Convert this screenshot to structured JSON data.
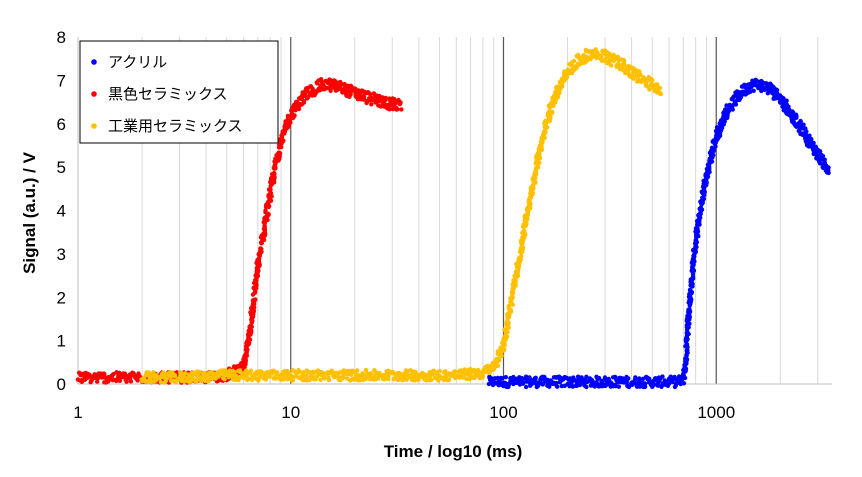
{
  "chart_data": {
    "type": "scatter",
    "x_scale": "log",
    "xlim": [
      1,
      3500
    ],
    "ylim": [
      0,
      8
    ],
    "x_ticks": [
      "1",
      "10",
      "100",
      "1000"
    ],
    "y_ticks": [
      "0",
      "1",
      "2",
      "3",
      "4",
      "5",
      "6",
      "7",
      "8"
    ],
    "xlabel": "Time / log10 (ms)",
    "ylabel": "Signal (a.u.) / V",
    "grid": "vertical log grid, darker lines at decades",
    "legend_position": "top-left",
    "series": [
      {
        "name": "アクリル",
        "color": "#0000ff",
        "x": [
          85,
          150,
          300,
          500,
          650,
          700,
          720,
          740,
          770,
          800,
          850,
          900,
          950,
          1000,
          1100,
          1200,
          1300,
          1400,
          1500,
          1600,
          1700,
          1800,
          2000,
          2200,
          2400,
          2600,
          2800,
          3000,
          3200,
          3400
        ],
        "y": [
          0.05,
          0.05,
          0.05,
          0.05,
          0.05,
          0.1,
          0.6,
          1.5,
          2.5,
          3.3,
          4.1,
          4.8,
          5.3,
          5.7,
          6.2,
          6.5,
          6.7,
          6.85,
          6.9,
          6.9,
          6.85,
          6.8,
          6.6,
          6.3,
          6.0,
          5.8,
          5.5,
          5.3,
          5.1,
          4.9
        ]
      },
      {
        "name": "黒色セラミックス",
        "color": "#ff0000",
        "x": [
          1,
          1.5,
          2,
          3,
          4,
          5,
          6,
          6.3,
          6.6,
          7,
          7.5,
          8,
          8.5,
          9,
          9.5,
          10,
          11,
          12,
          13,
          14,
          15,
          17,
          20,
          25,
          30,
          33
        ],
        "y": [
          0.15,
          0.15,
          0.15,
          0.15,
          0.15,
          0.2,
          0.4,
          0.9,
          1.7,
          2.7,
          3.6,
          4.4,
          5.1,
          5.6,
          5.9,
          6.2,
          6.5,
          6.7,
          6.8,
          6.9,
          6.9,
          6.85,
          6.7,
          6.55,
          6.45,
          6.4
        ]
      },
      {
        "name": "工業用セラミックス",
        "color": "#ffc000",
        "x": [
          2,
          3,
          5,
          10,
          20,
          40,
          60,
          80,
          90,
          100,
          110,
          120,
          130,
          150,
          170,
          200,
          230,
          250,
          270,
          300,
          350,
          400,
          450,
          500,
          550
        ],
        "y": [
          0.15,
          0.15,
          0.2,
          0.2,
          0.2,
          0.2,
          0.2,
          0.25,
          0.4,
          0.9,
          2.0,
          3.0,
          4.0,
          5.5,
          6.5,
          7.2,
          7.5,
          7.6,
          7.6,
          7.55,
          7.4,
          7.2,
          7.0,
          6.9,
          6.8
        ]
      }
    ]
  }
}
